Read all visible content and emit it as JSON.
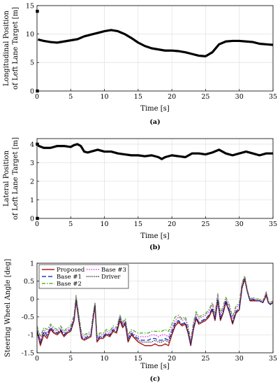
{
  "chart_data": [
    {
      "type": "line",
      "caption": "(a)",
      "xlabel": "Time [s]",
      "ylabel_lines": [
        "Longitudinal Position",
        "of Left Lane Target [m]"
      ],
      "xlim": [
        0,
        35
      ],
      "ylim": [
        0,
        15
      ],
      "xticks": [
        0,
        5,
        10,
        15,
        20,
        25,
        30,
        35
      ],
      "yticks": [
        0,
        5,
        10,
        15
      ],
      "grid": true,
      "series": [
        {
          "color": "#000000",
          "x": [
            0.3,
            1,
            2,
            3,
            4,
            5,
            6,
            7,
            8,
            9,
            10,
            11,
            12,
            13,
            14,
            15,
            16,
            17,
            18,
            19,
            20,
            21,
            22,
            23,
            24,
            25,
            26,
            27,
            28,
            29,
            30,
            31,
            32,
            33,
            34,
            35
          ],
          "y": [
            9.0,
            8.8,
            8.6,
            8.5,
            8.7,
            8.9,
            9.1,
            9.6,
            9.9,
            10.2,
            10.5,
            10.7,
            10.5,
            10.0,
            9.3,
            8.5,
            7.9,
            7.5,
            7.3,
            7.1,
            7.1,
            7.0,
            6.8,
            6.5,
            6.2,
            6.1,
            6.8,
            8.2,
            8.7,
            8.8,
            8.8,
            8.7,
            8.6,
            8.3,
            8.2,
            8.1
          ]
        }
      ],
      "markers": [
        {
          "x": 0.05,
          "y": 14.0
        },
        {
          "x": 0.05,
          "y": 0.0
        }
      ]
    },
    {
      "type": "line",
      "caption": "(b)",
      "xlabel": "Time [s]",
      "ylabel_lines": [
        "Lateral Position",
        "of Left Lane Target [m]"
      ],
      "xlim": [
        0,
        35
      ],
      "ylim": [
        0,
        4.3
      ],
      "xticks": [
        0,
        5,
        10,
        15,
        20,
        25,
        30,
        35
      ],
      "yticks": [
        0,
        1,
        2,
        3,
        4
      ],
      "grid": true,
      "series": [
        {
          "color": "#000000",
          "x": [
            0.3,
            1,
            2,
            3,
            4,
            5,
            5.5,
            6,
            6.5,
            7,
            7.5,
            8,
            9,
            10,
            11,
            12,
            13,
            14,
            15,
            16,
            17,
            18,
            18.5,
            19,
            20,
            21,
            22,
            23,
            24,
            25,
            26,
            27,
            28,
            29,
            30,
            31,
            32,
            33,
            34,
            35
          ],
          "y": [
            3.9,
            3.8,
            3.8,
            3.9,
            3.9,
            3.85,
            3.95,
            4.0,
            3.9,
            3.6,
            3.55,
            3.6,
            3.7,
            3.6,
            3.6,
            3.5,
            3.45,
            3.4,
            3.4,
            3.35,
            3.4,
            3.3,
            3.2,
            3.3,
            3.4,
            3.35,
            3.3,
            3.5,
            3.5,
            3.45,
            3.55,
            3.7,
            3.5,
            3.4,
            3.5,
            3.6,
            3.5,
            3.4,
            3.5,
            3.5
          ]
        }
      ],
      "markers": [
        {
          "x": 0.05,
          "y": 4.0
        },
        {
          "x": 0.05,
          "y": 0.0
        }
      ]
    },
    {
      "type": "line",
      "caption": "(c)",
      "xlabel": "Time [s]",
      "ylabel": "Steering Wheel Angle [deg]",
      "xlim": [
        0,
        35
      ],
      "ylim": [
        -1.5,
        1
      ],
      "xticks": [
        0,
        5,
        10,
        15,
        20,
        25,
        30,
        35
      ],
      "yticks": [
        -1.5,
        -1,
        -0.5,
        0,
        0.5,
        1
      ],
      "grid": true,
      "legend": "top-left",
      "x": [
        0,
        0.5,
        1,
        1.5,
        2,
        2.5,
        3,
        3.5,
        4,
        4.5,
        5,
        5.5,
        5.8,
        6.2,
        6.6,
        7,
        7.5,
        8,
        8.3,
        8.6,
        8.9,
        9.3,
        9.8,
        10.3,
        10.8,
        11.3,
        11.8,
        12.3,
        12.7,
        13.1,
        13.5,
        14,
        14.5,
        15,
        15.5,
        16,
        16.5,
        17,
        17.5,
        18,
        18.5,
        19,
        19.5,
        20,
        20.5,
        21,
        21.5,
        22,
        22.4,
        22.8,
        23.2,
        23.6,
        24,
        24.5,
        25,
        25.5,
        26,
        26.4,
        26.8,
        27.2,
        27.6,
        28,
        28.5,
        29,
        29.5,
        30,
        30.4,
        30.8,
        31.2,
        31.6,
        32,
        32.5,
        33,
        33.5,
        34,
        34.3,
        34.6,
        35
      ],
      "series": [
        {
          "name": "Proposed",
          "color": "#b01e1e",
          "dash": "",
          "values": [
            -0.9,
            -1.3,
            -1.0,
            -1.1,
            -0.85,
            -0.95,
            -1.0,
            -0.9,
            -1.05,
            -0.95,
            -0.9,
            -0.6,
            -0.05,
            -0.6,
            -1.1,
            -1.15,
            -1.1,
            -1.05,
            -0.6,
            -0.2,
            -1.2,
            -1.1,
            -1.1,
            -1.0,
            -1.05,
            -0.9,
            -0.95,
            -0.6,
            -0.8,
            -0.7,
            -1.2,
            -1.0,
            -1.1,
            -1.2,
            -1.25,
            -1.3,
            -1.3,
            -1.3,
            -1.25,
            -1.3,
            -1.3,
            -1.25,
            -1.3,
            -1.0,
            -0.75,
            -0.65,
            -0.75,
            -0.7,
            -0.95,
            -1.3,
            -0.85,
            -0.55,
            -0.7,
            -0.65,
            -0.6,
            -0.5,
            -0.3,
            -0.6,
            -0.05,
            -0.6,
            -0.4,
            -0.1,
            -0.35,
            -0.7,
            -0.4,
            -0.3,
            0.3,
            0.55,
            0.2,
            -0.05,
            -0.05,
            -0.05,
            -0.05,
            -0.1,
            0.1,
            -0.1,
            -0.15,
            -0.1
          ]
        },
        {
          "name": "Base #1",
          "color": "#1f3bd6",
          "dash": "6,3",
          "values": [
            -0.85,
            -1.2,
            -0.9,
            -1.0,
            -0.8,
            -0.9,
            -0.95,
            -0.85,
            -1.0,
            -0.9,
            -0.85,
            -0.55,
            0.0,
            -0.55,
            -1.05,
            -1.1,
            -1.05,
            -1.0,
            -0.55,
            -0.15,
            -1.15,
            -1.05,
            -1.05,
            -0.95,
            -1.0,
            -0.85,
            -0.9,
            -0.5,
            -0.75,
            -0.65,
            -1.1,
            -0.95,
            -1.05,
            -1.1,
            -1.15,
            -1.15,
            -1.15,
            -1.1,
            -1.1,
            -1.15,
            -1.15,
            -1.1,
            -1.15,
            -0.9,
            -0.65,
            -0.6,
            -0.7,
            -0.65,
            -0.9,
            -1.25,
            -0.8,
            -0.5,
            -0.65,
            -0.6,
            -0.55,
            -0.45,
            -0.25,
            -0.55,
            0.0,
            -0.55,
            -0.35,
            -0.05,
            -0.3,
            -0.65,
            -0.35,
            -0.25,
            0.35,
            0.6,
            0.2,
            -0.05,
            0.0,
            -0.05,
            -0.05,
            -0.1,
            0.15,
            -0.1,
            -0.15,
            -0.1
          ]
        },
        {
          "name": "Base #2",
          "color": "#4bb82e",
          "dash": "5,2,1.5,2",
          "values": [
            -0.75,
            -1.05,
            -0.8,
            -0.85,
            -0.7,
            -0.8,
            -0.85,
            -0.75,
            -0.9,
            -0.8,
            -0.75,
            -0.45,
            0.1,
            -0.45,
            -0.95,
            -1.0,
            -0.95,
            -0.9,
            -0.45,
            -0.1,
            -1.05,
            -0.95,
            -0.95,
            -0.85,
            -0.9,
            -0.75,
            -0.8,
            -0.45,
            -0.65,
            -0.55,
            -1.0,
            -0.85,
            -0.9,
            -0.95,
            -0.95,
            -0.95,
            -0.95,
            -0.9,
            -0.9,
            -0.9,
            -0.9,
            -0.85,
            -0.9,
            -0.7,
            -0.5,
            -0.45,
            -0.55,
            -0.5,
            -0.75,
            -1.15,
            -0.65,
            -0.35,
            -0.5,
            -0.45,
            -0.4,
            -0.3,
            -0.1,
            -0.4,
            0.15,
            -0.4,
            -0.2,
            0.05,
            -0.15,
            -0.5,
            -0.2,
            -0.1,
            0.45,
            0.65,
            0.25,
            0.0,
            0.05,
            0.0,
            0.0,
            -0.05,
            0.2,
            -0.05,
            -0.1,
            -0.05
          ]
        },
        {
          "name": "Base #3",
          "color": "#d63fd6",
          "dash": "1.5,1.8",
          "values": [
            -0.8,
            -1.15,
            -0.85,
            -0.95,
            -0.75,
            -0.85,
            -0.9,
            -0.8,
            -0.95,
            -0.85,
            -0.8,
            -0.5,
            0.05,
            -0.5,
            -1.0,
            -1.05,
            -1.0,
            -0.95,
            -0.5,
            -0.12,
            -1.1,
            -1.0,
            -1.0,
            -0.9,
            -0.95,
            -0.8,
            -0.85,
            -0.48,
            -0.7,
            -0.6,
            -1.05,
            -0.9,
            -1.0,
            -1.05,
            -1.05,
            -1.05,
            -1.05,
            -1.0,
            -1.0,
            -1.05,
            -1.0,
            -1.0,
            -1.05,
            -0.8,
            -0.6,
            -0.5,
            -0.6,
            -0.55,
            -0.8,
            -1.2,
            -0.7,
            -0.4,
            -0.55,
            -0.5,
            -0.45,
            -0.35,
            -0.15,
            -0.45,
            0.1,
            -0.45,
            -0.25,
            0.0,
            -0.2,
            -0.55,
            -0.25,
            -0.15,
            0.4,
            0.62,
            0.22,
            -0.02,
            0.02,
            -0.02,
            -0.02,
            -0.07,
            0.18,
            -0.07,
            -0.12,
            -0.07
          ]
        },
        {
          "name": "Driver",
          "color": "#111111",
          "dash": "1.2,1.6",
          "values": [
            -0.9,
            -1.25,
            -0.95,
            -1.05,
            -0.82,
            -0.92,
            -0.97,
            -0.87,
            -1.02,
            -0.92,
            -0.87,
            -0.57,
            -0.02,
            -0.57,
            -1.07,
            -1.12,
            -1.07,
            -1.02,
            -0.57,
            -0.17,
            -1.17,
            -1.07,
            -1.07,
            -0.97,
            -1.02,
            -0.87,
            -0.92,
            -0.55,
            -0.77,
            -0.67,
            -1.15,
            -0.97,
            -1.07,
            -1.15,
            -1.2,
            -1.2,
            -1.2,
            -1.2,
            -1.15,
            -1.2,
            -1.2,
            -1.15,
            -1.2,
            -0.95,
            -0.7,
            -0.62,
            -0.72,
            -0.67,
            -0.92,
            -1.28,
            -0.82,
            -0.52,
            -0.67,
            -0.62,
            -0.57,
            -0.47,
            -0.27,
            -0.57,
            -0.02,
            -0.57,
            -0.37,
            -0.07,
            -0.32,
            -0.67,
            -0.37,
            -0.27,
            0.32,
            0.57,
            0.2,
            -0.05,
            -0.02,
            -0.05,
            -0.05,
            -0.1,
            0.12,
            -0.1,
            -0.15,
            -0.1
          ]
        }
      ]
    }
  ]
}
